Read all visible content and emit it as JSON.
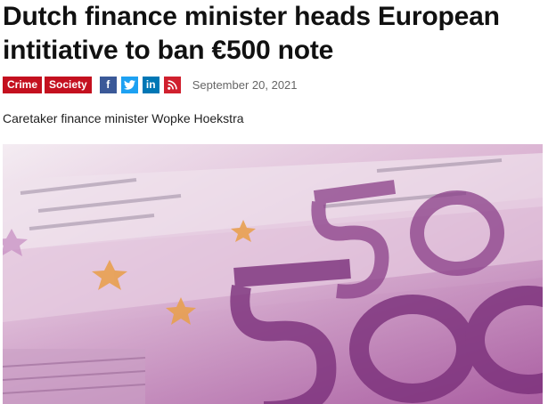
{
  "article": {
    "headline": "Dutch finance minister heads European intitiative to ban €500 note",
    "categories": [
      "Crime",
      "Society"
    ],
    "date": "September 20, 2021",
    "caption": "Caretaker finance minister Wopke Hoekstra"
  },
  "social": {
    "facebook": "f",
    "twitter_icon": "twitter-bird-icon",
    "linkedin": "in",
    "rss_icon": "rss-icon"
  },
  "photo": {
    "note_text": "500"
  },
  "colors": {
    "tag_red": "#c4101f",
    "facebook": "#3b5998",
    "twitter": "#1da1f2",
    "linkedin": "#0077b5",
    "rss": "#d0202e"
  }
}
